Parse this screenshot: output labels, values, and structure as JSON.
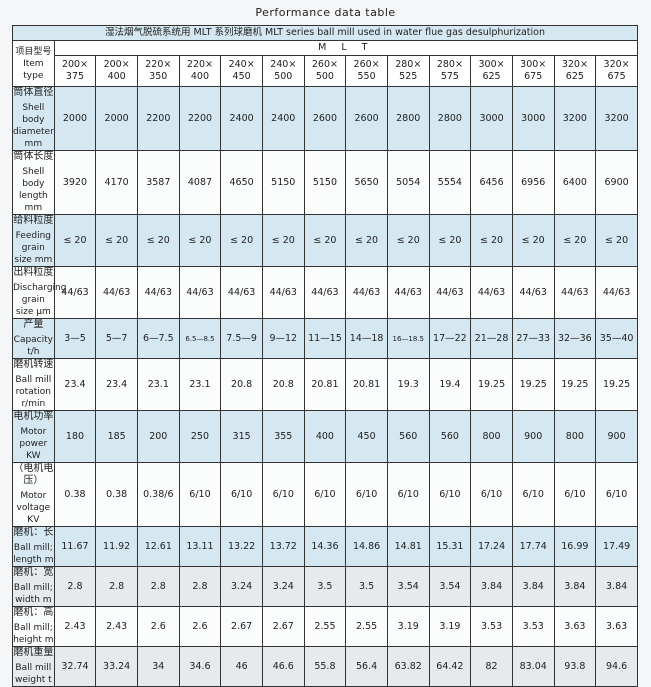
{
  "title": "Performance data table",
  "caption": "湿法烟气脱硫系统用 MLT 系列球磨机    MLT series ball mill used in water flue gas desulphurization",
  "series_label": "M L T",
  "item_type_label": "项目型号 Item   type",
  "models": [
    [
      "200×",
      "375"
    ],
    [
      "200×",
      "400"
    ],
    [
      "220×",
      "350"
    ],
    [
      "220×",
      "400"
    ],
    [
      "240×",
      "450"
    ],
    [
      "240×",
      "500"
    ],
    [
      "260×",
      "500"
    ],
    [
      "260×",
      "550"
    ],
    [
      "280×",
      "525"
    ],
    [
      "280×",
      "575"
    ],
    [
      "300×",
      "625"
    ],
    [
      "300×",
      "675"
    ],
    [
      "320×",
      "625"
    ],
    [
      "320×",
      "675"
    ]
  ],
  "rows": [
    {
      "cn": "筒体直径",
      "en": "Shell body diameter   mm",
      "values": [
        "2000",
        "2000",
        "2200",
        "2200",
        "2400",
        "2400",
        "2600",
        "2600",
        "2800",
        "2800",
        "3000",
        "3000",
        "3200",
        "3200"
      ]
    },
    {
      "cn": "筒体长度",
      "en": "Shell body length   mm",
      "values": [
        "3920",
        "4170",
        "3587",
        "4087",
        "4650",
        "5150",
        "5150",
        "5650",
        "5054",
        "5554",
        "6456",
        "6956",
        "6400",
        "6900"
      ]
    },
    {
      "cn": "给料粒度",
      "en": "Feeding grain size   mm",
      "values": [
        "≤ 20",
        "≤ 20",
        "≤ 20",
        "≤ 20",
        "≤ 20",
        "≤ 20",
        "≤ 20",
        "≤ 20",
        "≤ 20",
        "≤ 20",
        "≤ 20",
        "≤ 20",
        "≤ 20",
        "≤ 20"
      ]
    },
    {
      "cn": "出料粒度",
      "en": "Discharging grain size  μm",
      "values": [
        "44/63",
        "44/63",
        "44/63",
        "44/63",
        "44/63",
        "44/63",
        "44/63",
        "44/63",
        "44/63",
        "44/63",
        "44/63",
        "44/63",
        "44/63",
        "44/63"
      ]
    },
    {
      "cn": "产量",
      "en": "Capacity      t/h",
      "values": [
        "3—5",
        "5—7",
        "6—7.5",
        "6.5—8.5",
        "7.5—9",
        "9—12",
        "11—15",
        "14—18",
        "16—18.5",
        "17—22",
        "21—28",
        "27—33",
        "32—36",
        "35—40"
      ]
    },
    {
      "cn": "磨机转速",
      "en": "Ball mill rotation r/min",
      "values": [
        "23.4",
        "23.4",
        "23.1",
        "23.1",
        "20.8",
        "20.8",
        "20.81",
        "20.81",
        "19.3",
        "19.4",
        "19.25",
        "19.25",
        "19.25",
        "19.25"
      ]
    },
    {
      "cn": "电机功率",
      "en": "Motor power   KW",
      "values": [
        "180",
        "185",
        "200",
        "250",
        "315",
        "355",
        "400",
        "450",
        "560",
        "560",
        "800",
        "900",
        "800",
        "900"
      ]
    },
    {
      "cn": "（电机电压）",
      "en": "Motor voltage   KV",
      "values": [
        "0.38",
        "0.38",
        "0.38/6",
        "6/10",
        "6/10",
        "6/10",
        "6/10",
        "6/10",
        "6/10",
        "6/10",
        "6/10",
        "6/10",
        "6/10",
        "6/10"
      ]
    },
    {
      "cn": "磨机：长",
      "en": "Ball mill; length m",
      "values": [
        "11.67",
        "11.92",
        "12.61",
        "13.11",
        "13.22",
        "13.72",
        "14.36",
        "14.86",
        "14.81",
        "15.31",
        "17.24",
        "17.74",
        "16.99",
        "17.49"
      ]
    },
    {
      "cn": "磨机：宽",
      "en": "Ball mill; width   m",
      "values": [
        "2.8",
        "2.8",
        "2.8",
        "2.8",
        "3.24",
        "3.24",
        "3.5",
        "3.5",
        "3.54",
        "3.54",
        "3.84",
        "3.84",
        "3.84",
        "3.84"
      ]
    },
    {
      "cn": "磨机：高",
      "en": "Ball mill; height   m",
      "values": [
        "2.43",
        "2.43",
        "2.6",
        "2.6",
        "2.67",
        "2.67",
        "2.55",
        "2.55",
        "3.19",
        "3.19",
        "3.53",
        "3.53",
        "3.63",
        "3.63"
      ]
    },
    {
      "cn": "磨机重量",
      "en": "Ball mill weight   t",
      "values": [
        "32.74",
        "33.24",
        "34",
        "34.6",
        "46",
        "46.6",
        "55.8",
        "56.4",
        "63.82",
        "64.42",
        "82",
        "83.04",
        "93.8",
        "94.6"
      ]
    }
  ]
}
